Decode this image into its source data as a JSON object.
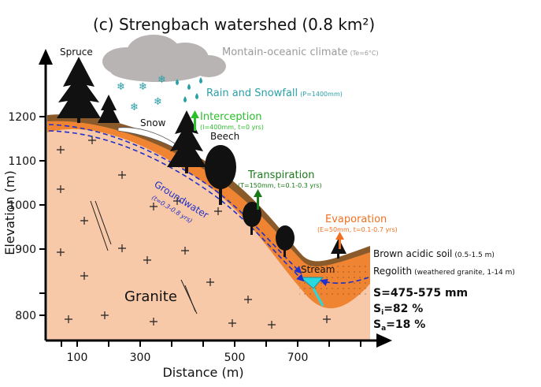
{
  "title": "(c) Strengbach watershed (0.8 km²)",
  "y_axis": {
    "label": "Elevation (m)",
    "ticks": [
      "1200",
      "1100",
      "1000",
      "900",
      "800"
    ]
  },
  "x_axis": {
    "label": "Distance (m)",
    "ticks": [
      "100",
      "300",
      "500",
      "700"
    ]
  },
  "labels": {
    "spruce": "Spruce",
    "beech": "Beech",
    "snow": "Snow",
    "stream": "Stream",
    "granite": "Granite",
    "groundwater": "Groundwater",
    "groundwater_detail": "(t=0.3-0.8 yrs)"
  },
  "climate": {
    "name": "Montain-oceanic climate",
    "detail": "(Te=6°C)"
  },
  "rain": {
    "name": "Rain and Snowfall",
    "detail": "(P=1400mm)"
  },
  "interception": {
    "name": "Interception",
    "detail": "(I=400mm, t=0 yrs)"
  },
  "transpiration": {
    "name": "Transpiration",
    "detail": "(T=150mm, t=0.1-0.3 yrs)"
  },
  "evaporation": {
    "name": "Evaporation",
    "detail": "(E=50mm, t=0.1-0.7 yrs)"
  },
  "soil": {
    "name": "Brown acidic soil",
    "detail": "(0.5-1.5 m)"
  },
  "regolith": {
    "name": "Regolith",
    "detail": "(weathered granite, 1-14 m)"
  },
  "storage": {
    "s": "S=475-575 mm",
    "si_label": "S",
    "si_sub": "i",
    "si_value": "=82 %",
    "sa_label": "S",
    "sa_sub": "a",
    "sa_value": "=18 %"
  },
  "colors": {
    "granite": "#f8c9a8",
    "regolith": "#ef8533",
    "soil": "#8b5a2b",
    "groundwater": "#2030c8",
    "cloud": "#b9b4b4",
    "rain_text": "#2aa0a8",
    "interception": "#2bbf2b",
    "transpiration": "#1a7a1a",
    "evaporation": "#f07020",
    "stream": "#28d8e0"
  }
}
